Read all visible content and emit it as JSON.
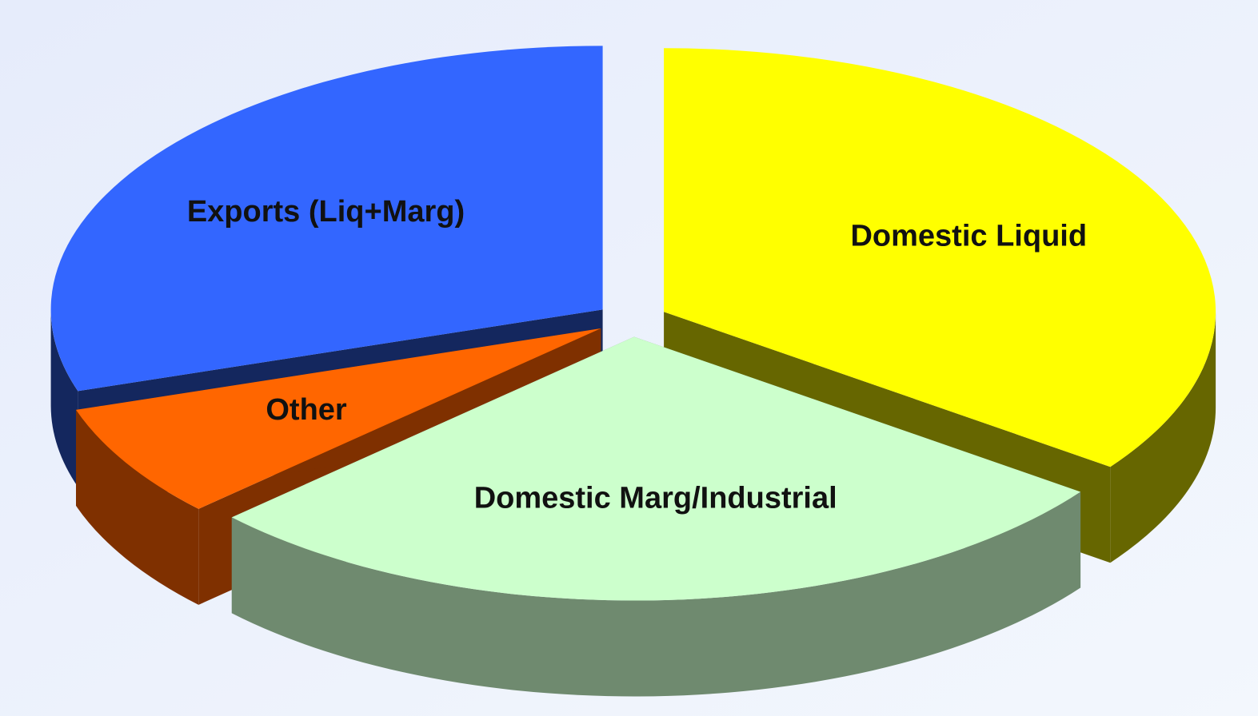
{
  "chart_data": {
    "type": "pie",
    "categories": [
      "Domestic Liquid",
      "Domestic Marg/Industrial",
      "Other",
      "Exports (Liq+Marg)"
    ],
    "values": [
      35,
      28,
      7,
      30
    ],
    "colors": [
      "#ffff00",
      "#ccffcc",
      "#ff6600",
      "#3366ff"
    ],
    "side_colors": [
      "#666600",
      "#6f8a6f",
      "#7f3000",
      "#14275e"
    ]
  }
}
